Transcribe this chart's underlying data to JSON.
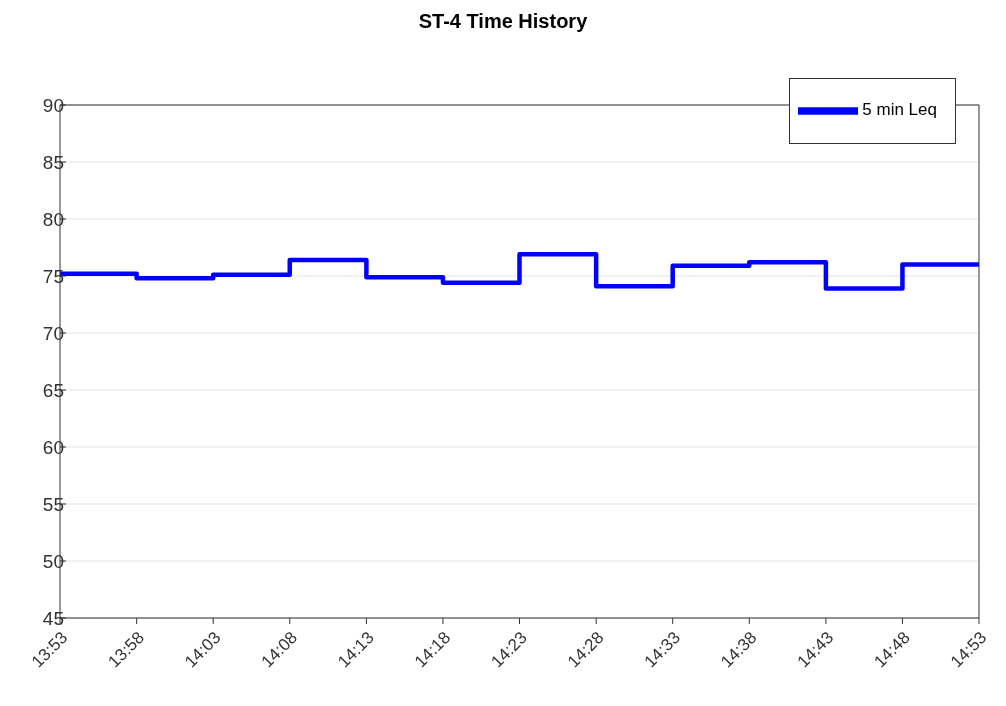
{
  "chart_data": {
    "type": "step",
    "title": "ST-4 Time History",
    "x": [
      13.8833,
      13.9667,
      14.05,
      14.1333,
      14.2167,
      14.3,
      14.3833,
      14.4667,
      14.55,
      14.6333,
      14.7167,
      14.8,
      14.8833
    ],
    "series": [
      {
        "name": "5 min Leq",
        "color": "#0000ff",
        "values": [
          75.2,
          74.8,
          75.1,
          76.4,
          74.9,
          74.4,
          76.9,
          74.1,
          75.9,
          76.2,
          73.9,
          76.0,
          76.0
        ]
      }
    ],
    "xlim": [
      13.8833,
      14.8833
    ],
    "xticks": [
      {
        "value": 13.8833,
        "label": "13:53"
      },
      {
        "value": 13.9667,
        "label": "13:58"
      },
      {
        "value": 14.05,
        "label": "14:03"
      },
      {
        "value": 14.1333,
        "label": "14:08"
      },
      {
        "value": 14.2167,
        "label": "14:13"
      },
      {
        "value": 14.3,
        "label": "14:18"
      },
      {
        "value": 14.3833,
        "label": "14:23"
      },
      {
        "value": 14.4667,
        "label": "14:28"
      },
      {
        "value": 14.55,
        "label": "14:33"
      },
      {
        "value": 14.6333,
        "label": "14:38"
      },
      {
        "value": 14.7167,
        "label": "14:43"
      },
      {
        "value": 14.8,
        "label": "14:48"
      },
      {
        "value": 14.8833,
        "label": "14:53"
      }
    ],
    "ylim": [
      45,
      90
    ],
    "yticks": [
      45,
      50,
      55,
      60,
      65,
      70,
      75,
      80,
      85,
      90
    ],
    "grid": "y",
    "legend": "top right",
    "marker": "none",
    "line_style": "solid"
  }
}
